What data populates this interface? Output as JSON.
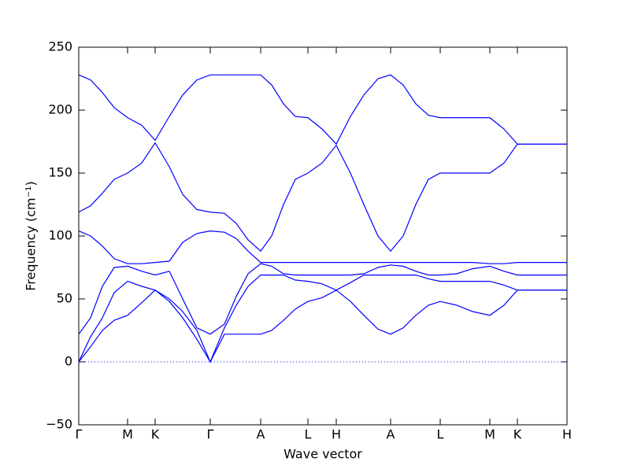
{
  "chart_data": {
    "type": "line",
    "xlabel": "Wave vector",
    "ylabel": "Frequency (cm⁻¹)",
    "color": "#0000ff",
    "hline": 0,
    "xlim": [
      0,
      6.2
    ],
    "ylim": [
      -50,
      250
    ],
    "xticks": [
      {
        "value": 0,
        "label": "Γ"
      },
      {
        "value": 0.62,
        "label": "M"
      },
      {
        "value": 0.97,
        "label": "K"
      },
      {
        "value": 1.67,
        "label": "Γ"
      },
      {
        "value": 2.31,
        "label": "A"
      },
      {
        "value": 2.91,
        "label": "L"
      },
      {
        "value": 3.27,
        "label": "H"
      },
      {
        "value": 3.96,
        "label": "A"
      },
      {
        "value": 4.59,
        "label": "L"
      },
      {
        "value": 5.22,
        "label": "M"
      },
      {
        "value": 5.57,
        "label": "K"
      },
      {
        "value": 6.2,
        "label": "H"
      }
    ],
    "yticks": [
      {
        "value": -50,
        "label": "−50"
      },
      0,
      50,
      100,
      150,
      200,
      250
    ],
    "x": [
      0,
      0.15,
      0.3,
      0.45,
      0.62,
      0.8,
      0.97,
      1.15,
      1.32,
      1.5,
      1.67,
      1.85,
      2.0,
      2.15,
      2.31,
      2.45,
      2.6,
      2.75,
      2.91,
      3.09,
      3.27,
      3.45,
      3.62,
      3.8,
      3.96,
      4.12,
      4.28,
      4.44,
      4.59,
      4.8,
      5.0,
      5.22,
      5.4,
      5.57,
      5.9,
      6.2
    ],
    "series": [
      {
        "values": [
          0,
          12,
          25,
          33,
          37,
          47,
          57,
          48,
          35,
          18,
          0,
          22,
          22,
          22,
          22,
          25,
          33,
          42,
          48,
          51,
          57,
          48,
          37,
          26,
          22,
          27,
          37,
          45,
          48,
          45,
          40,
          37,
          45,
          57,
          57,
          57
        ]
      },
      {
        "values": [
          0,
          20,
          35,
          55,
          64,
          60,
          57,
          50,
          40,
          25,
          0,
          27,
          45,
          60,
          69,
          69,
          69,
          65,
          64,
          62,
          57,
          63,
          69,
          69,
          69,
          69,
          69,
          66,
          64,
          64,
          64,
          64,
          61,
          57,
          57,
          57
        ]
      },
      {
        "values": [
          22,
          35,
          60,
          75,
          76,
          72,
          69,
          72,
          50,
          27,
          22,
          30,
          52,
          70,
          78,
          76,
          70,
          69,
          69,
          69,
          69,
          69,
          70,
          75,
          77,
          76,
          72,
          69,
          69,
          70,
          74,
          76,
          72,
          69,
          69,
          69
        ]
      },
      {
        "values": [
          104,
          100,
          92,
          82,
          78,
          78,
          79,
          80,
          95,
          102,
          104,
          103,
          98,
          88,
          79,
          79,
          79,
          79,
          79,
          79,
          79,
          79,
          79,
          79,
          79,
          79,
          79,
          79,
          79,
          79,
          79,
          78,
          78,
          79,
          79,
          79
        ]
      },
      {
        "values": [
          119,
          124,
          134,
          145,
          150,
          158,
          174,
          155,
          133,
          121,
          119,
          118,
          110,
          97,
          88,
          100,
          125,
          145,
          150,
          158,
          172,
          150,
          125,
          100,
          88,
          100,
          125,
          145,
          150,
          150,
          150,
          150,
          158,
          173,
          173,
          173
        ]
      },
      {
        "values": [
          228,
          224,
          214,
          202,
          194,
          188,
          176,
          195,
          212,
          224,
          228,
          228,
          228,
          228,
          228,
          220,
          205,
          195,
          194,
          185,
          173,
          195,
          212,
          225,
          228,
          220,
          205,
          196,
          194,
          194,
          194,
          194,
          185,
          173,
          173,
          173
        ]
      }
    ]
  }
}
